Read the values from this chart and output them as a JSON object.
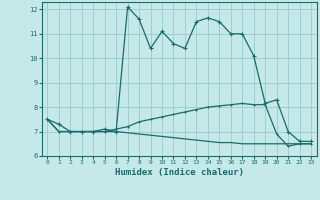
{
  "xlabel": "Humidex (Indice chaleur)",
  "xlim": [
    -0.5,
    23.5
  ],
  "ylim": [
    6,
    12.3
  ],
  "yticks": [
    6,
    7,
    8,
    9,
    10,
    11,
    12
  ],
  "xticks": [
    0,
    1,
    2,
    3,
    4,
    5,
    6,
    7,
    8,
    9,
    10,
    11,
    12,
    13,
    14,
    15,
    16,
    17,
    18,
    19,
    20,
    21,
    22,
    23
  ],
  "background_color": "#c5e8e8",
  "grid_color": "#a0cece",
  "line_color": "#1a6b6b",
  "line1_x": [
    0,
    1,
    2,
    3,
    4,
    5,
    6,
    7,
    8,
    9,
    10,
    11,
    12,
    13,
    14,
    15,
    16,
    17,
    18,
    19,
    20,
    21,
    22,
    23
  ],
  "line1_y": [
    7.5,
    7.3,
    7.0,
    7.0,
    7.0,
    7.1,
    7.0,
    12.1,
    11.6,
    10.4,
    11.1,
    10.6,
    10.4,
    11.5,
    11.65,
    11.5,
    11.0,
    11.0,
    10.1,
    8.15,
    8.3,
    7.0,
    6.6,
    6.6
  ],
  "line2_x": [
    0,
    1,
    2,
    3,
    4,
    5,
    6,
    7,
    8,
    9,
    10,
    11,
    12,
    13,
    14,
    15,
    16,
    17,
    18,
    19,
    20,
    21,
    22,
    23
  ],
  "line2_y": [
    7.5,
    7.0,
    7.0,
    7.0,
    7.0,
    7.0,
    7.1,
    7.2,
    7.4,
    7.5,
    7.6,
    7.7,
    7.8,
    7.9,
    8.0,
    8.05,
    8.1,
    8.15,
    8.1,
    8.1,
    6.9,
    6.4,
    6.5,
    6.5
  ],
  "line3_x": [
    0,
    1,
    2,
    3,
    4,
    5,
    6,
    7,
    8,
    9,
    10,
    11,
    12,
    13,
    14,
    15,
    16,
    17,
    18,
    19,
    20,
    21,
    22,
    23
  ],
  "line3_y": [
    7.5,
    7.0,
    7.0,
    7.0,
    7.0,
    7.0,
    7.0,
    6.95,
    6.9,
    6.85,
    6.8,
    6.75,
    6.7,
    6.65,
    6.6,
    6.55,
    6.55,
    6.5,
    6.5,
    6.5,
    6.5,
    6.5,
    6.5,
    6.5
  ]
}
